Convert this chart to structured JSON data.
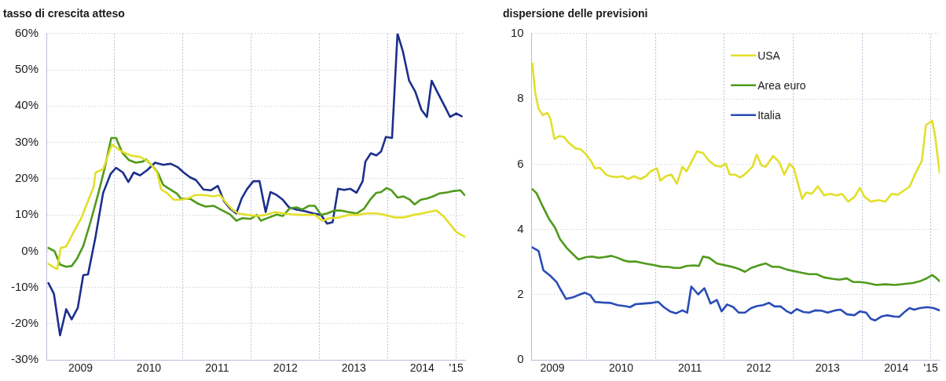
{
  "chart_data": [
    {
      "type": "line",
      "title": "tasso di crescita atteso",
      "xlim": [
        2009,
        2015.13
      ],
      "ylim": [
        -30,
        60
      ],
      "xticks": [
        {
          "value": 2009.5,
          "label": "2009"
        },
        {
          "value": 2010,
          "label": null
        },
        {
          "value": 2010.5,
          "label": "2010"
        },
        {
          "value": 2011,
          "label": null
        },
        {
          "value": 2011.5,
          "label": "2011"
        },
        {
          "value": 2012,
          "label": null
        },
        {
          "value": 2012.5,
          "label": "2012"
        },
        {
          "value": 2013,
          "label": null
        },
        {
          "value": 2013.5,
          "label": "2013"
        },
        {
          "value": 2014,
          "label": null
        },
        {
          "value": 2014.5,
          "label": "2014"
        },
        {
          "value": 2015,
          "label": "'15"
        }
      ],
      "yticks": [
        {
          "value": -30,
          "label": "-30%"
        },
        {
          "value": -20,
          "label": "-20%"
        },
        {
          "value": -10,
          "label": "-10%"
        },
        {
          "value": 0,
          "label": "0%"
        },
        {
          "value": 10,
          "label": "10%"
        },
        {
          "value": 20,
          "label": "20%"
        },
        {
          "value": 30,
          "label": "30%"
        },
        {
          "value": 40,
          "label": "40%"
        },
        {
          "value": 50,
          "label": "50%"
        },
        {
          "value": 60,
          "label": "60%"
        }
      ],
      "grid": true,
      "legend": false,
      "marker": "none",
      "line_style": "solid",
      "series": [
        {
          "color": "#e2df2a",
          "x": [
            2009.03,
            2009.11,
            2009.16,
            2009.21,
            2009.29,
            2009.4,
            2009.51,
            2009.6,
            2009.69,
            2009.72,
            2009.83,
            2009.96,
            2010.1,
            2010.23,
            2010.37,
            2010.5,
            2010.62,
            2010.68,
            2010.77,
            2010.86,
            2010.97,
            2011.08,
            2011.18,
            2011.31,
            2011.45,
            2011.54,
            2011.63,
            2011.72,
            2011.81,
            2011.94,
            2012.08,
            2012.21,
            2012.35,
            2012.48,
            2012.61,
            2012.75,
            2012.93,
            2013.04,
            2013.15,
            2013.29,
            2013.42,
            2013.56,
            2013.69,
            2013.83,
            2013.96,
            2014.1,
            2014.23,
            2014.37,
            2014.5,
            2014.64,
            2014.71,
            2014.82,
            2014.91,
            2015.0,
            2015.12
          ],
          "values": [
            -3.5,
            -4.5,
            -4.9,
            0.9,
            1.3,
            5.3,
            9.1,
            13.4,
            17.6,
            21.7,
            22.6,
            29.4,
            27.5,
            26.4,
            26,
            24.7,
            21.7,
            17,
            16,
            14.2,
            14.2,
            14.6,
            15.5,
            15.5,
            15.1,
            15.5,
            13.4,
            11.5,
            10.4,
            10,
            9.7,
            10,
            10.8,
            10.4,
            10.1,
            10,
            10,
            8.4,
            9.1,
            9.3,
            10,
            10,
            10.4,
            10.4,
            10,
            9.3,
            9.3,
            10,
            10.4,
            11,
            11.2,
            9.5,
            7.4,
            5.3,
            4
          ]
        },
        {
          "color": "#4f9a1c",
          "x": [
            2009.03,
            2009.12,
            2009.2,
            2009.29,
            2009.37,
            2009.45,
            2009.54,
            2009.65,
            2009.76,
            2009.85,
            2009.95,
            2010.02,
            2010.11,
            2010.21,
            2010.31,
            2010.41,
            2010.46,
            2010.55,
            2010.63,
            2010.71,
            2010.78,
            2010.91,
            2010.97,
            2011.11,
            2011.22,
            2011.33,
            2011.45,
            2011.58,
            2011.69,
            2011.78,
            2011.87,
            2011.99,
            2012.08,
            2012.14,
            2012.26,
            2012.37,
            2012.46,
            2012.56,
            2012.66,
            2012.75,
            2012.84,
            2012.93,
            2013.02,
            2013.11,
            2013.22,
            2013.31,
            2013.42,
            2013.54,
            2013.65,
            2013.74,
            2013.83,
            2013.9,
            2013.98,
            2014.05,
            2014.14,
            2014.23,
            2014.32,
            2014.39,
            2014.48,
            2014.57,
            2014.66,
            2014.75,
            2014.86,
            2014.97,
            2015.06,
            2015.12
          ],
          "values": [
            0.9,
            0,
            -3.7,
            -4.3,
            -4.1,
            -2,
            1.4,
            8.3,
            15.9,
            22.6,
            31.2,
            31.2,
            27.2,
            25.1,
            24.4,
            24.7,
            25.3,
            23.6,
            21.7,
            18.3,
            17.4,
            15.9,
            14.5,
            14.4,
            13.1,
            12.3,
            12.5,
            11.2,
            10.1,
            8.4,
            9.1,
            8.9,
            10,
            8.4,
            9.3,
            10.1,
            9.7,
            11.8,
            12.1,
            11.5,
            12.5,
            12.5,
            10,
            10.4,
            11.2,
            11.2,
            10.8,
            10.4,
            11.7,
            14.2,
            16.1,
            16.3,
            17.4,
            16.8,
            14.8,
            15.1,
            14.2,
            12.9,
            14.2,
            14.5,
            15.1,
            15.9,
            16.2,
            16.6,
            16.8,
            15.5
          ]
        },
        {
          "color": "#1c2f8c",
          "x": [
            2009.03,
            2009.11,
            2009.2,
            2009.29,
            2009.37,
            2009.46,
            2009.54,
            2009.61,
            2009.72,
            2009.83,
            2009.94,
            2010.02,
            2010.12,
            2010.2,
            2010.28,
            2010.37,
            2010.48,
            2010.59,
            2010.71,
            2010.82,
            2010.92,
            2011.01,
            2011.1,
            2011.19,
            2011.3,
            2011.41,
            2011.51,
            2011.6,
            2011.69,
            2011.78,
            2011.86,
            2011.94,
            2012.03,
            2012.12,
            2012.21,
            2012.28,
            2012.37,
            2012.46,
            2012.55,
            2012.66,
            2012.79,
            2012.91,
            2013.02,
            2013.11,
            2013.19,
            2013.27,
            2013.36,
            2013.45,
            2013.54,
            2013.63,
            2013.67,
            2013.75,
            2013.83,
            2013.9,
            2013.97,
            2014.06,
            2014.14,
            2014.22,
            2014.31,
            2014.4,
            2014.49,
            2014.57,
            2014.64,
            2014.72,
            2014.84,
            2014.91,
            2015.0,
            2015.08
          ],
          "values": [
            -8.8,
            -11.7,
            -23.2,
            -16,
            -18.8,
            -15.6,
            -6.6,
            -6.4,
            4,
            16,
            21.3,
            23,
            21.7,
            19.1,
            21.7,
            20.9,
            22.4,
            24.4,
            23.8,
            24.1,
            23.2,
            21.7,
            20.4,
            19.6,
            17,
            16.8,
            18,
            13.8,
            11.7,
            10.4,
            14.6,
            17.2,
            19.3,
            19.3,
            10.8,
            16.3,
            15.5,
            14.2,
            12.1,
            11.5,
            11,
            10.4,
            10,
            7.6,
            8,
            17.2,
            16.9,
            17.2,
            16.1,
            19.3,
            24.7,
            27,
            26.4,
            27.5,
            31.5,
            31.2,
            60,
            55,
            47,
            44,
            39,
            37,
            47,
            44,
            39.6,
            37,
            38,
            37.2
          ]
        }
      ]
    },
    {
      "type": "line",
      "title": "dispersione delle previsioni",
      "xlim": [
        2009.2,
        2015.13
      ],
      "ylim": [
        0,
        10
      ],
      "xticks": [
        {
          "value": 2009.5,
          "label": "2009"
        },
        {
          "value": 2010,
          "label": null
        },
        {
          "value": 2010.5,
          "label": "2010"
        },
        {
          "value": 2011,
          "label": null
        },
        {
          "value": 2011.5,
          "label": "2011"
        },
        {
          "value": 2012,
          "label": null
        },
        {
          "value": 2012.5,
          "label": "2012"
        },
        {
          "value": 2013,
          "label": null
        },
        {
          "value": 2013.5,
          "label": "2013"
        },
        {
          "value": 2014,
          "label": null
        },
        {
          "value": 2014.5,
          "label": "2014"
        },
        {
          "value": 2015,
          "label": "'15"
        }
      ],
      "yticks": [
        0,
        2,
        4,
        6,
        8,
        10
      ],
      "grid": true,
      "legend": "top",
      "marker": "none",
      "line_style": "solid",
      "series": [
        {
          "name": "USA",
          "color": "#e2df2a",
          "x": [
            2009.21,
            2009.25,
            2009.3,
            2009.36,
            2009.43,
            2009.47,
            2009.53,
            2009.6,
            2009.67,
            2009.75,
            2009.84,
            2009.91,
            2009.99,
            2010.06,
            2010.12,
            2010.19,
            2010.28,
            2010.34,
            2010.43,
            2010.52,
            2010.6,
            2010.69,
            2010.78,
            2010.86,
            2010.93,
            2011.02,
            2011.07,
            2011.15,
            2011.23,
            2011.31,
            2011.39,
            2011.45,
            2011.53,
            2011.6,
            2011.69,
            2011.78,
            2011.86,
            2011.95,
            2012.02,
            2012.08,
            2012.15,
            2012.23,
            2012.32,
            2012.41,
            2012.47,
            2012.54,
            2012.6,
            2012.71,
            2012.8,
            2012.87,
            2012.95,
            2013.01,
            2013.13,
            2013.19,
            2013.27,
            2013.36,
            2013.45,
            2013.54,
            2013.63,
            2013.71,
            2013.8,
            2013.89,
            2013.97,
            2014.04,
            2014.13,
            2014.24,
            2014.34,
            2014.43,
            2014.52,
            2014.6,
            2014.69,
            2014.78,
            2014.87,
            2014.93,
            2015.02,
            2015.06,
            2015.13
          ],
          "values": [
            9.08,
            8.2,
            7.7,
            7.5,
            7.57,
            7.4,
            6.77,
            6.86,
            6.83,
            6.63,
            6.48,
            6.46,
            6.3,
            6.1,
            5.87,
            5.89,
            5.68,
            5.63,
            5.6,
            5.63,
            5.54,
            5.63,
            5.54,
            5.63,
            5.78,
            5.87,
            5.49,
            5.63,
            5.68,
            5.4,
            5.92,
            5.78,
            6.1,
            6.39,
            6.34,
            6.1,
            5.96,
            5.92,
            6.01,
            5.68,
            5.68,
            5.59,
            5.73,
            5.92,
            6.29,
            5.96,
            5.92,
            6.25,
            6.06,
            5.68,
            6.01,
            5.87,
            4.94,
            5.13,
            5.09,
            5.32,
            5.04,
            5.09,
            5.04,
            5.09,
            4.85,
            4.99,
            5.27,
            4.99,
            4.85,
            4.9,
            4.85,
            5.09,
            5.06,
            5.18,
            5.3,
            5.73,
            6.1,
            7.19,
            7.33,
            6.9,
            5.73
          ]
        },
        {
          "name": "Area euro",
          "color": "#4f9a1c",
          "x": [
            2009.21,
            2009.27,
            2009.36,
            2009.45,
            2009.54,
            2009.61,
            2009.71,
            2009.8,
            2009.88,
            2009.99,
            2010.08,
            2010.17,
            2010.25,
            2010.36,
            2010.45,
            2010.54,
            2010.62,
            2010.71,
            2010.84,
            2010.97,
            2011.08,
            2011.19,
            2011.28,
            2011.36,
            2011.45,
            2011.56,
            2011.63,
            2011.69,
            2011.78,
            2011.89,
            2011.99,
            2012.1,
            2012.21,
            2012.3,
            2012.39,
            2012.5,
            2012.6,
            2012.69,
            2012.8,
            2012.91,
            2013.02,
            2013.13,
            2013.23,
            2013.34,
            2013.45,
            2013.56,
            2013.67,
            2013.78,
            2013.87,
            2013.97,
            2014.08,
            2014.21,
            2014.34,
            2014.48,
            2014.61,
            2014.74,
            2014.84,
            2014.93,
            2015.02,
            2015.07,
            2015.13
          ],
          "values": [
            5.23,
            5.11,
            4.71,
            4.33,
            4.05,
            3.71,
            3.43,
            3.24,
            3.08,
            3.15,
            3.17,
            3.13,
            3.15,
            3.19,
            3.13,
            3.05,
            3.01,
            3.02,
            2.96,
            2.91,
            2.86,
            2.85,
            2.82,
            2.82,
            2.88,
            2.9,
            2.88,
            3.17,
            3.13,
            2.96,
            2.91,
            2.86,
            2.79,
            2.7,
            2.82,
            2.9,
            2.96,
            2.86,
            2.85,
            2.77,
            2.72,
            2.67,
            2.63,
            2.63,
            2.53,
            2.49,
            2.46,
            2.5,
            2.39,
            2.39,
            2.36,
            2.3,
            2.32,
            2.3,
            2.33,
            2.36,
            2.41,
            2.49,
            2.6,
            2.53,
            2.41
          ]
        },
        {
          "name": "Italia",
          "color": "#2a4db5",
          "x": [
            2009.21,
            2009.3,
            2009.37,
            2009.47,
            2009.56,
            2009.62,
            2009.7,
            2009.8,
            2009.88,
            2009.97,
            2010.05,
            2010.12,
            2010.23,
            2010.34,
            2010.45,
            2010.56,
            2010.63,
            2010.71,
            2010.84,
            2010.95,
            2011.04,
            2011.12,
            2011.21,
            2011.3,
            2011.39,
            2011.46,
            2011.52,
            2011.62,
            2011.71,
            2011.8,
            2011.89,
            2011.96,
            2012.04,
            2012.13,
            2012.21,
            2012.3,
            2012.39,
            2012.47,
            2012.56,
            2012.65,
            2012.73,
            2012.82,
            2012.91,
            2012.97,
            2013.05,
            2013.15,
            2013.23,
            2013.32,
            2013.41,
            2013.5,
            2013.61,
            2013.69,
            2013.78,
            2013.89,
            2013.97,
            2014.06,
            2014.13,
            2014.19,
            2014.28,
            2014.36,
            2014.47,
            2014.54,
            2014.63,
            2014.69,
            2014.76,
            2014.84,
            2014.95,
            2015.04,
            2015.13
          ],
          "values": [
            3.45,
            3.34,
            2.75,
            2.58,
            2.39,
            2.16,
            1.87,
            1.92,
            1.99,
            2.06,
            1.99,
            1.78,
            1.76,
            1.75,
            1.68,
            1.65,
            1.62,
            1.71,
            1.73,
            1.75,
            1.78,
            1.62,
            1.49,
            1.43,
            1.52,
            1.45,
            2.25,
            2.01,
            2.2,
            1.73,
            1.84,
            1.49,
            1.7,
            1.62,
            1.45,
            1.45,
            1.59,
            1.65,
            1.68,
            1.75,
            1.64,
            1.64,
            1.49,
            1.43,
            1.56,
            1.47,
            1.45,
            1.52,
            1.51,
            1.45,
            1.52,
            1.54,
            1.4,
            1.37,
            1.49,
            1.45,
            1.26,
            1.21,
            1.33,
            1.37,
            1.33,
            1.32,
            1.49,
            1.59,
            1.54,
            1.59,
            1.62,
            1.59,
            1.52
          ]
        }
      ]
    }
  ]
}
